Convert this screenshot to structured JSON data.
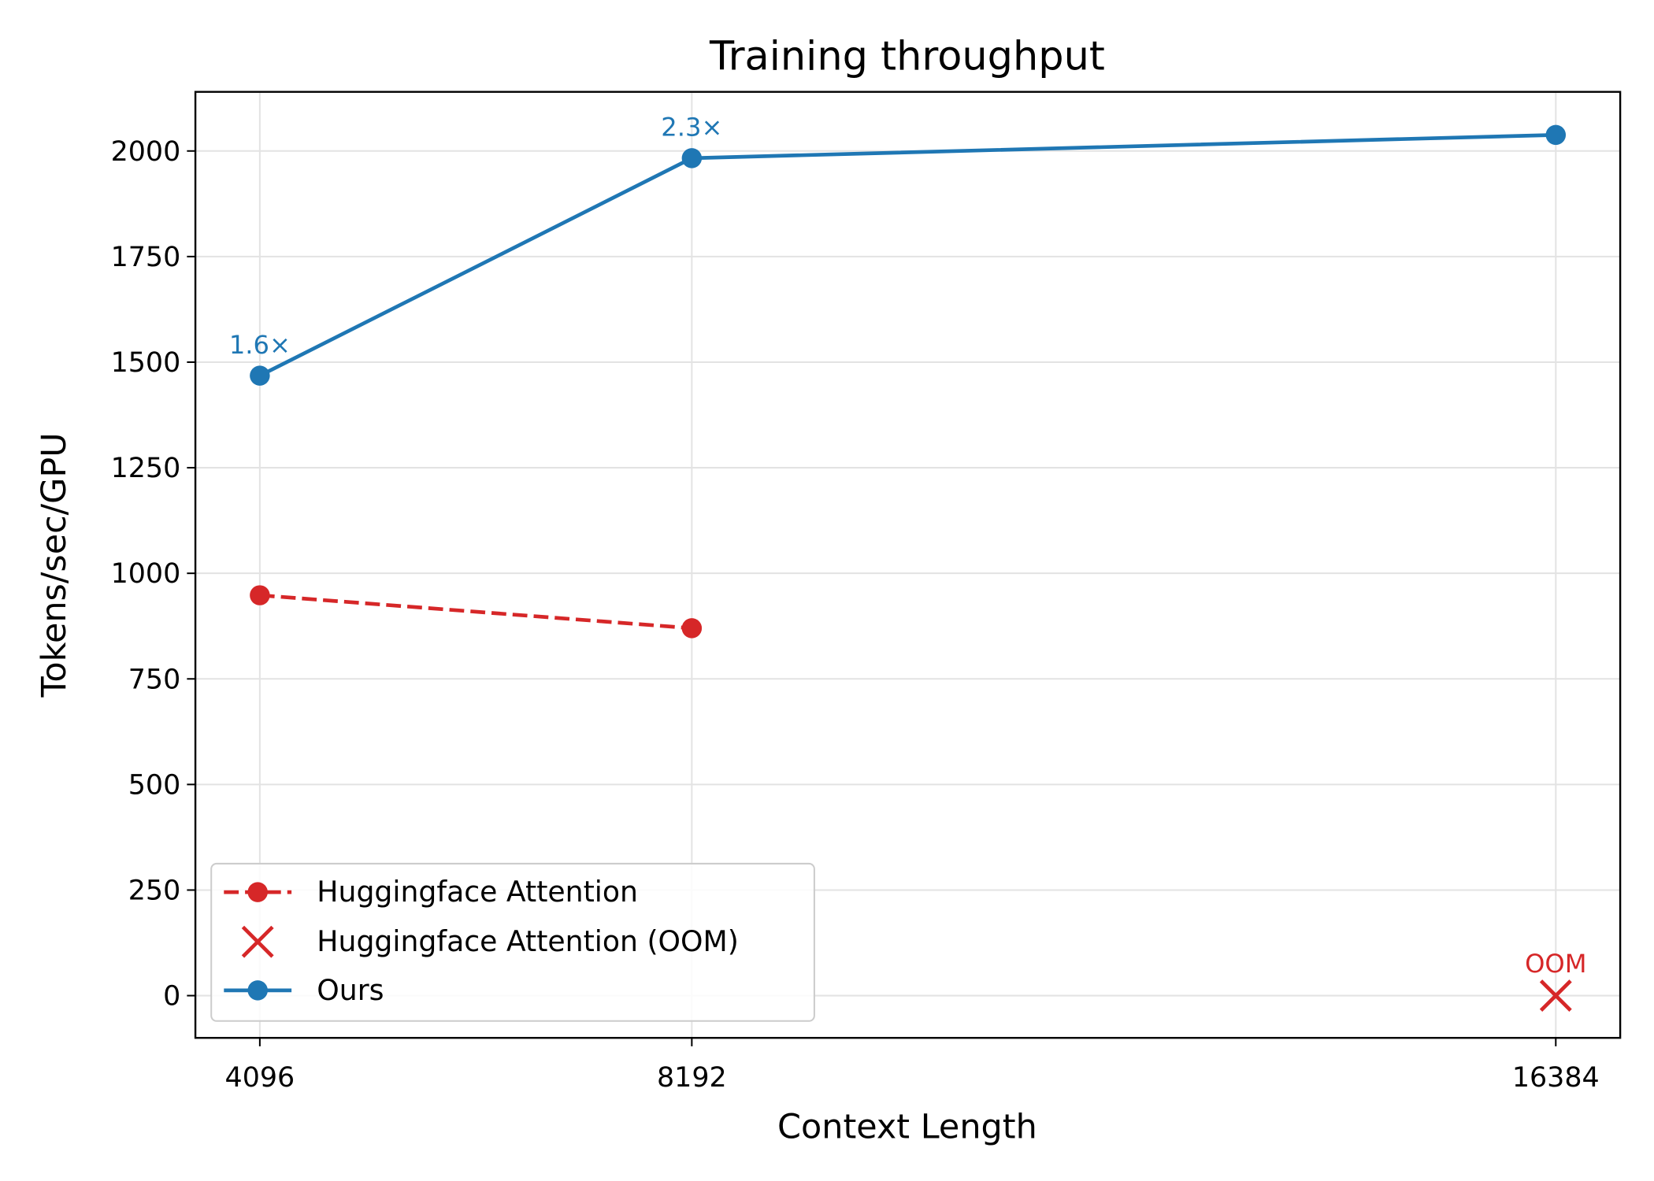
{
  "chart_data": {
    "type": "line",
    "title": "Training throughput",
    "xlabel": "Context Length",
    "ylabel": "Tokens/sec/GPU",
    "x_categories": [
      "4096",
      "8192",
      "16384"
    ],
    "x_values": [
      4096,
      8192,
      16384
    ],
    "ylim": [
      -100,
      2140
    ],
    "yticks": [
      0,
      250,
      500,
      750,
      1000,
      1250,
      1500,
      1750,
      2000
    ],
    "grid": true,
    "legend_position": "lower-left",
    "series": [
      {
        "name": "Huggingface Attention",
        "style": "dashed-with-circles",
        "color": "#d62728",
        "x": [
          4096,
          8192
        ],
        "y": [
          948,
          870
        ]
      },
      {
        "name": "Huggingface Attention (OOM)",
        "style": "x-marker",
        "color": "#d62728",
        "x": [
          16384
        ],
        "y": [
          0
        ]
      },
      {
        "name": "Ours",
        "style": "solid-with-circles",
        "color": "#1f77b4",
        "x": [
          4096,
          8192,
          16384
        ],
        "y": [
          1468,
          1983,
          2038
        ]
      }
    ],
    "annotations": [
      {
        "text": "1.6×",
        "x": 4096,
        "y": 1468,
        "color": "#1f77b4"
      },
      {
        "text": "2.3×",
        "x": 8192,
        "y": 1983,
        "color": "#1f77b4"
      },
      {
        "text": "OOM",
        "x": 16384,
        "y": 0,
        "color": "#d62728"
      }
    ]
  }
}
